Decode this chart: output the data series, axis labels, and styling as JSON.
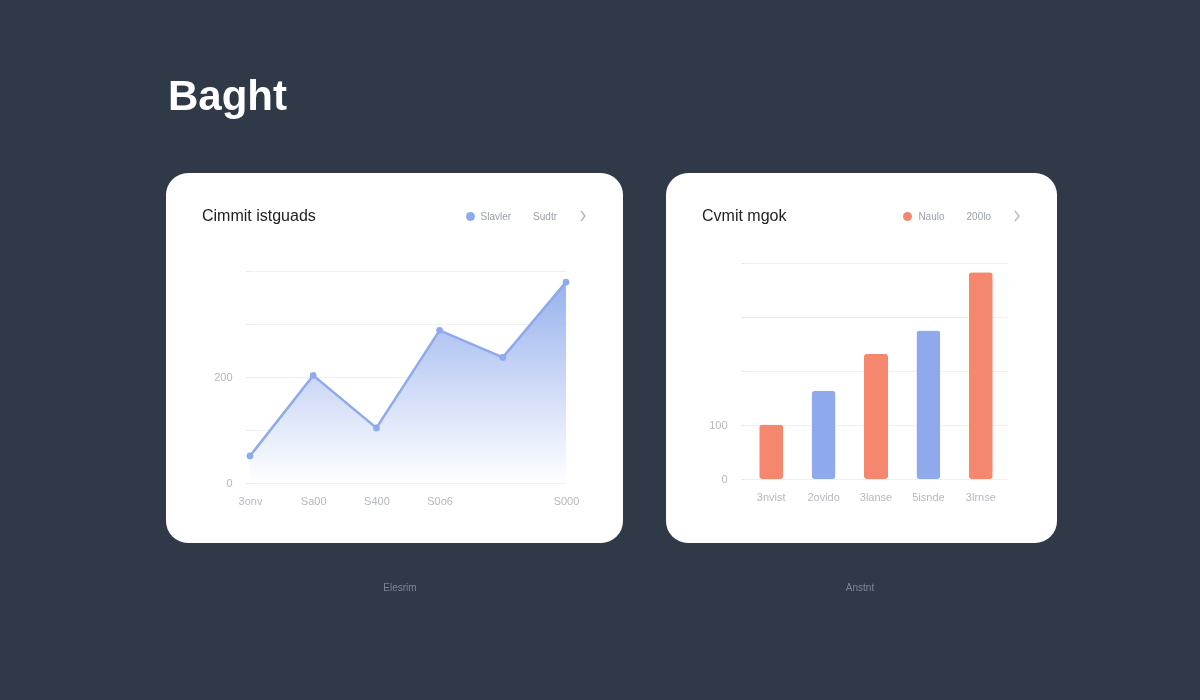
{
  "chart_data": [
    {
      "type": "area",
      "title": "Cimmit istguads",
      "annotations": [
        "Baght",
        "Sudtr",
        "Elesrim"
      ],
      "marker": "circle",
      "legend": "top right",
      "grid": "y",
      "categories": [
        "3onv",
        "Sa00",
        "S400",
        "S0o6",
        null,
        "S000"
      ],
      "ylim": [
        0,
        400
      ],
      "yticks": [
        0,
        {
          "value": 100,
          "label": null
        },
        200,
        {
          "value": 300,
          "label": null
        },
        {
          "value": 400,
          "label": null
        }
      ],
      "series": [
        {
          "name": "Slavler",
          "color": "#8eaaec",
          "values": [
            51,
            203,
            104,
            288,
            237,
            379
          ]
        }
      ]
    },
    {
      "type": "bar",
      "title": "Cvmit mgok",
      "annotations": [
        "200lo",
        "Anstnt"
      ],
      "legend": "top right",
      "grid": "y",
      "categories": [
        "3nvist",
        "2ovido",
        "3lanse",
        "5isnde",
        "3lrnse"
      ],
      "ylim": [
        0,
        400
      ],
      "yticks": [
        0,
        100,
        {
          "value": 200,
          "label": null
        },
        {
          "value": 300,
          "label": null
        },
        {
          "value": 400,
          "label": null
        }
      ],
      "series": [
        {
          "name": "Naulo",
          "color": "#f4876e",
          "colors": [
            "#f4876e",
            "#8eaaec",
            "#f4876e",
            "#8eaaec",
            "#f4876e"
          ],
          "values": [
            101,
            163,
            232,
            275,
            383
          ]
        }
      ]
    }
  ]
}
